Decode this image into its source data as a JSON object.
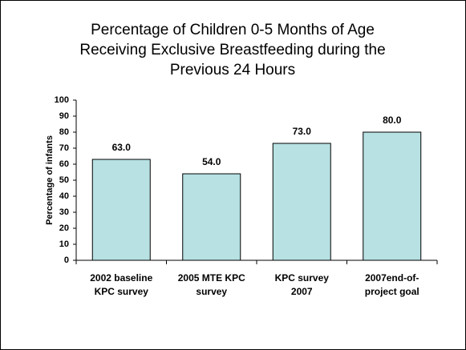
{
  "chart_data": {
    "type": "bar",
    "title": "Percentage of Children 0-5 Months of Age\nReceiving Exclusive Breastfeeding during the\nPrevious 24 Hours",
    "y_label": "Percentage of infants",
    "categories": [
      "2002 baseline\nKPC survey",
      "2005 MTE KPC\nsurvey",
      "KPC survey\n2007",
      "2007end-of-\nproject goal"
    ],
    "values": [
      63,
      54,
      73,
      80
    ],
    "value_labels": [
      "63.0",
      "54.0",
      "73.0",
      "80.0"
    ],
    "color": "#b7e1e3",
    "ylim": [
      0,
      100
    ],
    "yticks": [
      0,
      10,
      20,
      30,
      40,
      50,
      60,
      70,
      80,
      90,
      100
    ],
    "grid": false
  }
}
